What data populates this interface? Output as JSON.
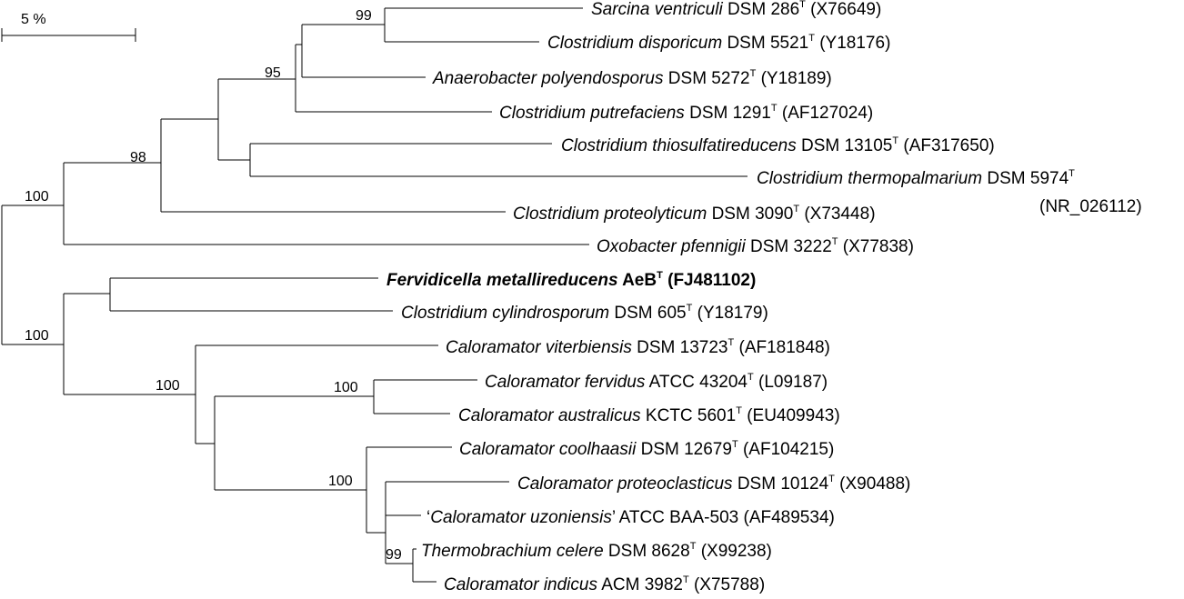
{
  "scale_bar": {
    "label": "5 %"
  },
  "bootstrap": {
    "b99a": "99",
    "b95": "95",
    "b98": "98",
    "b100_top": "100",
    "b100_root": "100",
    "b100_calor": "100",
    "b100_ferv": "100",
    "b100_proteo": "100",
    "b99b": "99"
  },
  "taxa": [
    {
      "italic": "Sarcina ventriculi",
      "strain": " DSM 286",
      "sup": "T",
      "acc": " (X76649)"
    },
    {
      "italic": "Clostridium disporicum",
      "strain": " DSM 5521",
      "sup": "T",
      "acc": " (Y18176)"
    },
    {
      "italic": "Anaerobacter polyendosporus",
      "strain": " DSM 5272",
      "sup": "T",
      "acc": " (Y18189)"
    },
    {
      "italic": "Clostridium putrefaciens",
      "strain": " DSM 1291",
      "sup": "T",
      "acc": " (AF127024)"
    },
    {
      "italic": "Clostridium thiosulfatireducens",
      "strain": " DSM 13105",
      "sup": "T",
      "acc": " (AF317650)"
    },
    {
      "italic": "Clostridium thermopalmarium",
      "strain": " DSM 5974",
      "sup": "T",
      "acc": "(NR_026112)"
    },
    {
      "italic": "Clostridium proteolyticum",
      "strain": " DSM 3090",
      "sup": "T",
      "acc": " (X73448)"
    },
    {
      "italic": "Oxobacter pfennigii",
      "strain": " DSM 3222",
      "sup": "T",
      "acc": " (X77838)"
    },
    {
      "italic": "Fervidicella metallireducens",
      "strain": " AeB",
      "sup": "T",
      "acc": " (FJ481102)",
      "highlight": true
    },
    {
      "italic": "Clostridium cylindrosporum",
      "strain": " DSM 605",
      "sup": "T",
      "acc": " (Y18179)"
    },
    {
      "italic": "Caloramator viterbiensis",
      "strain": " DSM 13723",
      "sup": "T",
      "acc": " (AF181848)"
    },
    {
      "italic": "Caloramator fervidus",
      "strain": " ATCC 43204",
      "sup": "T",
      "acc": " (L09187)"
    },
    {
      "italic": "Caloramator australicus",
      "strain": " KCTC 5601",
      "sup": "T",
      "acc": " (EU409943)"
    },
    {
      "italic": "Caloramator coolhaasii",
      "strain": " DSM 12679",
      "sup": "T",
      "acc": " (AF104215)"
    },
    {
      "italic": "Caloramator proteoclasticus",
      "strain": " DSM 10124",
      "sup": "T",
      "acc": " (X90488)"
    },
    {
      "prefix": "‘",
      "italic": "Caloramator uzoniensis",
      "strain": "’ ATCC BAA-503",
      "sup": "",
      "acc": " (AF489534)"
    },
    {
      "italic": "Thermobrachium celere",
      "strain": " DSM 8628",
      "sup": "T",
      "acc": " (X99238)"
    },
    {
      "italic": "Caloramator indicus",
      "strain": " ACM 3982",
      "sup": "T",
      "acc": " (X75788)"
    }
  ]
}
